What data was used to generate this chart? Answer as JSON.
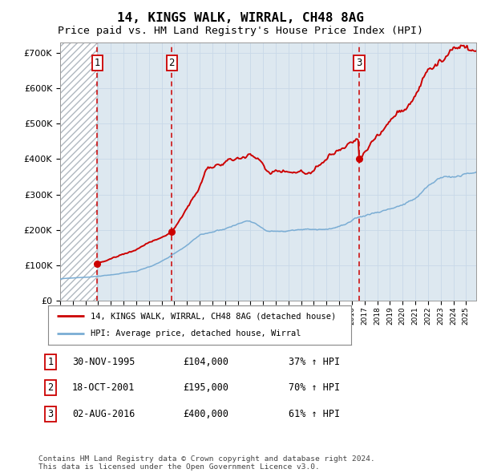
{
  "title": "14, KINGS WALK, WIRRAL, CH48 8AG",
  "subtitle": "Price paid vs. HM Land Registry's House Price Index (HPI)",
  "title_fontsize": 11.5,
  "subtitle_fontsize": 9.5,
  "ylabel_values": [
    0,
    100000,
    200000,
    300000,
    400000,
    500000,
    600000,
    700000
  ],
  "ylabel_labels": [
    "£0",
    "£100K",
    "£200K",
    "£300K",
    "£400K",
    "£500K",
    "£600K",
    "£700K"
  ],
  "xlim_start": 1993.0,
  "xlim_end": 2025.8,
  "ylim": [
    0,
    730000
  ],
  "sales": [
    {
      "num": 1,
      "year": 1995.92,
      "price": 104000,
      "date": "30-NOV-1995",
      "pct": "37%"
    },
    {
      "num": 2,
      "year": 2001.8,
      "price": 195000,
      "date": "18-OCT-2001",
      "pct": "70%"
    },
    {
      "num": 3,
      "year": 2016.58,
      "price": 400000,
      "date": "02-AUG-2016",
      "pct": "61%"
    }
  ],
  "hpi_line_color": "#7aadd4",
  "price_line_color": "#cc0000",
  "sale_marker_color": "#cc0000",
  "vline_color": "#cc0000",
  "grid_color": "#c8d8e8",
  "legend_label_price": "14, KINGS WALK, WIRRAL, CH48 8AG (detached house)",
  "legend_label_hpi": "HPI: Average price, detached house, Wirral",
  "table_rows": [
    {
      "num": 1,
      "date": "30-NOV-1995",
      "price": "£104,000",
      "pct": "37% ↑ HPI"
    },
    {
      "num": 2,
      "date": "18-OCT-2001",
      "price": "£195,000",
      "pct": "70% ↑ HPI"
    },
    {
      "num": 3,
      "date": "02-AUG-2016",
      "price": "£400,000",
      "pct": "61% ↑ HPI"
    }
  ],
  "footnote": "Contains HM Land Registry data © Crown copyright and database right 2024.\nThis data is licensed under the Open Government Licence v3.0.",
  "background_color": "#ffffff",
  "plot_bg_color": "#dde8f0"
}
